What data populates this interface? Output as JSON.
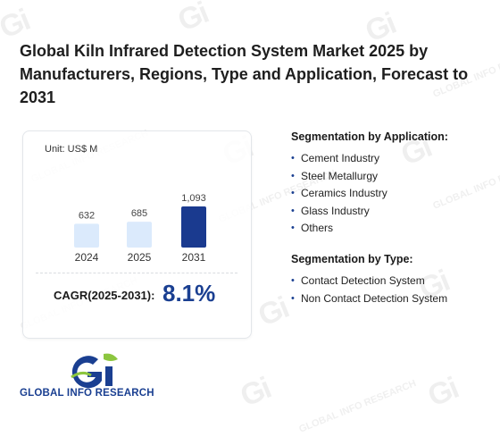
{
  "title": "Global Kiln Infrared Detection System Market 2025 by Manufacturers, Regions, Type and Application, Forecast to 2031",
  "chart_data": {
    "type": "bar",
    "unit": "Unit: US$ M",
    "categories": [
      "2024",
      "2025",
      "2031"
    ],
    "values": [
      632,
      685,
      1093
    ],
    "value_labels": [
      "632",
      "685",
      "1,093"
    ],
    "colors": [
      "#dbeafc",
      "#dbeafc",
      "#1a3a8f"
    ]
  },
  "cagr": {
    "label": "CAGR(2025-2031):",
    "value": "8.1%"
  },
  "segmentation_application": {
    "heading": "Segmentation by Application:",
    "items": [
      "Cement Industry",
      "Steel Metallurgy",
      "Ceramics Industry",
      "Glass Industry",
      "Others"
    ]
  },
  "segmentation_type": {
    "heading": "Segmentation by Type:",
    "items": [
      "Contact Detection System",
      "Non Contact Detection System"
    ]
  },
  "logo": {
    "text": "GLOBAL INFO RESEARCH",
    "mark": "Gi"
  },
  "colors": {
    "accent": "#1a3f91",
    "logo_green": "#8cc63f",
    "bar_light": "#dbeafc",
    "bar_dark": "#1a3a8f"
  }
}
